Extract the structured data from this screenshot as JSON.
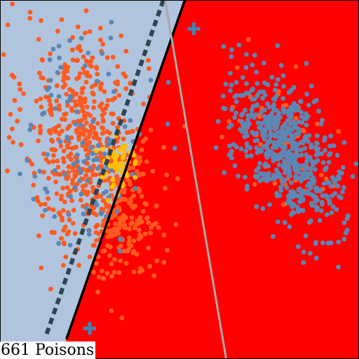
{
  "caption": "661 Poisons",
  "chart_data": {
    "type": "scatter",
    "title": "",
    "xlabel": "",
    "ylabel": "",
    "xlim": [
      -1,
      1
    ],
    "ylim": [
      -1,
      1
    ],
    "grid": false,
    "legend": "none",
    "colors": {
      "region_left": "#b0c4de",
      "region_right": "#ff0000",
      "orange_points": "#ff5a1f",
      "blue_points": "#5b87b4",
      "yellow_points": "#ffc000",
      "centroid_markers": "#4682b4",
      "solid_boundary": "#000000",
      "dashed_boundary": "#2f4550",
      "gray_boundary": "#a9a9a9"
    },
    "lines": [
      {
        "name": "solid",
        "style": "solid",
        "x": [
          -0.63,
          0.03
        ],
        "y": [
          -0.89,
          1.0
        ]
      },
      {
        "name": "dashed",
        "style": "dashed",
        "x": [
          -0.74,
          -0.09
        ],
        "y": [
          -0.86,
          1.0
        ]
      },
      {
        "name": "gray",
        "style": "solid",
        "x": [
          -0.08,
          0.26
        ],
        "y": [
          1.0,
          -1.0
        ]
      }
    ],
    "markers": [
      {
        "shape": "plus",
        "x": 0.08,
        "y": 0.84
      },
      {
        "shape": "plus",
        "x": -0.5,
        "y": -0.83
      }
    ],
    "clusters": [
      {
        "color": "orange_points",
        "n": 560,
        "center": [
          -0.52,
          0.2
        ],
        "spread": [
          0.17,
          0.34
        ],
        "rho": -0.15
      },
      {
        "color": "orange_points",
        "n": 150,
        "center": [
          -0.3,
          -0.18
        ],
        "spread": [
          0.1,
          0.18
        ],
        "rho": 0.0
      },
      {
        "color": "blue_points",
        "n": 110,
        "center": [
          -0.52,
          0.22
        ],
        "spread": [
          0.16,
          0.32
        ],
        "rho": 0.0
      },
      {
        "color": "yellow_points",
        "n": 55,
        "center": [
          -0.34,
          0.08
        ],
        "spread": [
          0.06,
          0.07
        ],
        "rho": 0.0
      },
      {
        "color": "orange_points",
        "n": 70,
        "center": [
          0.59,
          0.18
        ],
        "spread": [
          0.16,
          0.22
        ],
        "rho": -0.6
      },
      {
        "color": "blue_points",
        "n": 620,
        "center": [
          0.6,
          0.15
        ],
        "spread": [
          0.16,
          0.22
        ],
        "rho": -0.6
      }
    ]
  }
}
